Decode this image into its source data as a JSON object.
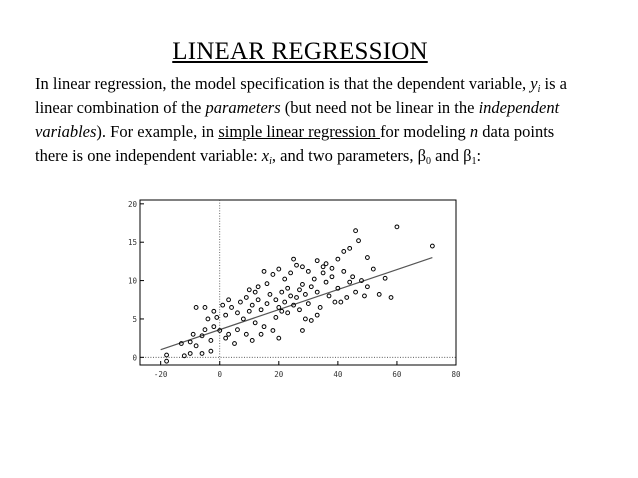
{
  "slide": {
    "title": "LINEAR REGRESSION",
    "paragraph": {
      "l1_a": "In linear regression, the model specification is that the dependent variable, ",
      "l1_var": "y",
      "l1_sub": "i",
      "l1_b": " is a",
      "l2_a": "linear combination of the ",
      "l2_params": "parameters",
      "l2_b": " (but need not be linear in the ",
      "l2_indep": "independent",
      "l3_vars": "variables",
      "l3_a": "). For example, in ",
      "l3_link": "simple linear regression ",
      "l3_b": "for modeling ",
      "l3_n": "n",
      "l3_c": " data points",
      "l4_a": "there is one independent variable: ",
      "l4_var": "x",
      "l4_sub": "i",
      "l4_b": ", and two parameters, β",
      "l4_sub0": "0",
      "l4_c": " and β",
      "l4_sub1": "1",
      "l4_d": ":"
    }
  },
  "chart_data": {
    "type": "scatter",
    "title": "",
    "xlabel": "",
    "ylabel": "",
    "xlim": [
      -27,
      80
    ],
    "ylim": [
      -1,
      20.5
    ],
    "x_ticks": [
      -20,
      0,
      20,
      40,
      60,
      80
    ],
    "y_ticks": [
      0,
      5,
      10,
      15,
      20
    ],
    "grid": false,
    "marker": "open-circle",
    "fit_line": {
      "x": [
        -20,
        72
      ],
      "y": [
        1.0,
        13.0
      ]
    },
    "reference_lines": {
      "x": 0,
      "y": 0
    },
    "points": [
      [
        -18,
        -0.5
      ],
      [
        -18,
        0.3
      ],
      [
        -12,
        0.2
      ],
      [
        -10,
        0.5
      ],
      [
        -6,
        0.5
      ],
      [
        -3,
        0.8
      ],
      [
        -13,
        1.8
      ],
      [
        -10,
        2.0
      ],
      [
        -8,
        1.5
      ],
      [
        -6,
        2.8
      ],
      [
        -3,
        2.2
      ],
      [
        2,
        2.5
      ],
      [
        5,
        1.8
      ],
      [
        -9,
        3.0
      ],
      [
        -5,
        3.6
      ],
      [
        -2,
        4.0
      ],
      [
        0,
        3.5
      ],
      [
        3,
        3.0
      ],
      [
        6,
        3.6
      ],
      [
        9,
        3.0
      ],
      [
        -4,
        5.0
      ],
      [
        -1,
        5.2
      ],
      [
        2,
        5.5
      ],
      [
        4,
        6.5
      ],
      [
        6,
        5.8
      ],
      [
        8,
        5.0
      ],
      [
        10,
        6.0
      ],
      [
        12,
        4.5
      ],
      [
        15,
        4.0
      ],
      [
        18,
        3.5
      ],
      [
        20,
        2.5
      ],
      [
        14,
        3.0
      ],
      [
        11,
        2.2
      ],
      [
        -8,
        6.5
      ],
      [
        -5,
        6.5
      ],
      [
        -2,
        6.0
      ],
      [
        1,
        6.8
      ],
      [
        3,
        7.5
      ],
      [
        7,
        7.2
      ],
      [
        9,
        7.8
      ],
      [
        11,
        6.8
      ],
      [
        13,
        7.5
      ],
      [
        14,
        6.2
      ],
      [
        16,
        7.0
      ],
      [
        17,
        8.2
      ],
      [
        19,
        7.5
      ],
      [
        20,
        6.5
      ],
      [
        21,
        8.5
      ],
      [
        22,
        7.2
      ],
      [
        23,
        9.0
      ],
      [
        24,
        8.0
      ],
      [
        25,
        6.8
      ],
      [
        26,
        7.8
      ],
      [
        27,
        8.8
      ],
      [
        28,
        9.5
      ],
      [
        29,
        8.2
      ],
      [
        30,
        7.0
      ],
      [
        31,
        9.2
      ],
      [
        32,
        10.2
      ],
      [
        33,
        8.5
      ],
      [
        34,
        6.5
      ],
      [
        35,
        11.0
      ],
      [
        36,
        9.8
      ],
      [
        37,
        8.0
      ],
      [
        38,
        10.5
      ],
      [
        39,
        7.2
      ],
      [
        40,
        9.0
      ],
      [
        42,
        11.2
      ],
      [
        44,
        9.8
      ],
      [
        46,
        8.5
      ],
      [
        48,
        10.0
      ],
      [
        50,
        9.2
      ],
      [
        52,
        11.5
      ],
      [
        54,
        8.2
      ],
      [
        56,
        10.3
      ],
      [
        58,
        7.8
      ],
      [
        22,
        10.2
      ],
      [
        18,
        10.8
      ],
      [
        16,
        9.6
      ],
      [
        13,
        9.2
      ],
      [
        10,
        8.8
      ],
      [
        24,
        11.0
      ],
      [
        26,
        12.0
      ],
      [
        28,
        11.8
      ],
      [
        30,
        11.2
      ],
      [
        25,
        12.8
      ],
      [
        33,
        12.6
      ],
      [
        36,
        12.2
      ],
      [
        38,
        11.6
      ],
      [
        40,
        12.8
      ],
      [
        42,
        13.8
      ],
      [
        44,
        14.2
      ],
      [
        47,
        15.2
      ],
      [
        50,
        13.0
      ],
      [
        49,
        8.0
      ],
      [
        41,
        7.2
      ],
      [
        29,
        5.0
      ],
      [
        27,
        6.2
      ],
      [
        23,
        5.8
      ],
      [
        31,
        4.8
      ],
      [
        19,
        5.2
      ],
      [
        21,
        6.0
      ],
      [
        43,
        7.8
      ],
      [
        45,
        10.5
      ],
      [
        46,
        16.5
      ],
      [
        60,
        17.0
      ],
      [
        72,
        14.5
      ],
      [
        20,
        11.5
      ],
      [
        15,
        11.2
      ],
      [
        35,
        11.8
      ],
      [
        12,
        8.5
      ],
      [
        28,
        3.5
      ],
      [
        33,
        5.5
      ]
    ]
  }
}
